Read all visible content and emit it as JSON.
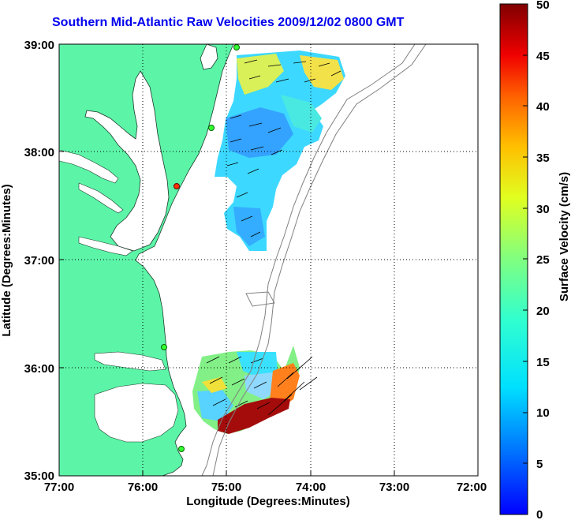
{
  "title": "Southern Mid-Atlantic Raw Velocities 2009/12/02 0800 GMT",
  "map": {
    "xlabel": "Longitude (Degrees:Minutes)",
    "ylabel": "Latitude (Degrees:Minutes)",
    "x_ticks": [
      "77:00",
      "76:00",
      "75:00",
      "74:00",
      "73:00",
      "72:00"
    ],
    "y_ticks": [
      "39:00",
      "38:00",
      "37:00",
      "36:00",
      "35:00"
    ],
    "land_color": "#5cf5a8",
    "grid": "dotted"
  },
  "colorbar": {
    "label": "Surface Velocity (cm/s)",
    "ticks": [
      "50",
      "45",
      "40",
      "35",
      "30",
      "25",
      "20",
      "15",
      "10",
      "5",
      "0"
    ],
    "range": [
      0,
      50
    ]
  }
}
